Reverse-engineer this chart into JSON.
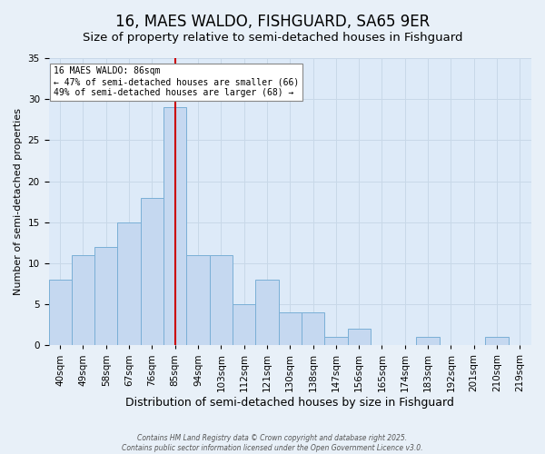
{
  "title": "16, MAES WALDO, FISHGUARD, SA65 9ER",
  "subtitle": "Size of property relative to semi-detached houses in Fishguard",
  "xlabel": "Distribution of semi-detached houses by size in Fishguard",
  "ylabel": "Number of semi-detached properties",
  "bar_labels": [
    "40sqm",
    "49sqm",
    "58sqm",
    "67sqm",
    "76sqm",
    "85sqm",
    "94sqm",
    "103sqm",
    "112sqm",
    "121sqm",
    "130sqm",
    "138sqm",
    "147sqm",
    "156sqm",
    "165sqm",
    "174sqm",
    "183sqm",
    "192sqm",
    "201sqm",
    "210sqm",
    "219sqm"
  ],
  "bar_values": [
    8,
    11,
    12,
    15,
    18,
    29,
    11,
    11,
    5,
    8,
    4,
    4,
    1,
    2,
    0,
    0,
    1,
    0,
    0,
    1,
    0
  ],
  "bar_color": "#c5d8f0",
  "bar_edge_color": "#7aafd6",
  "bin_width": 9,
  "property_label": "16 MAES WALDO: 86sqm",
  "smaller_pct": 47,
  "smaller_count": 66,
  "larger_pct": 49,
  "larger_count": 68,
  "vline_color": "#cc0000",
  "vline_x": 85,
  "annotation_box_color": "#ffffff",
  "annotation_box_edge": "#888888",
  "ylim": [
    0,
    35
  ],
  "yticks": [
    0,
    5,
    10,
    15,
    20,
    25,
    30,
    35
  ],
  "grid_color": "#c8d8e8",
  "fig_bg_color": "#e8f0f8",
  "ax_bg_color": "#ddeaf8",
  "footer_line1": "Contains HM Land Registry data © Crown copyright and database right 2025.",
  "footer_line2": "Contains public sector information licensed under the Open Government Licence v3.0.",
  "title_fontsize": 12,
  "subtitle_fontsize": 9.5,
  "xlabel_fontsize": 9,
  "ylabel_fontsize": 8,
  "tick_fontsize": 7.5,
  "annot_fontsize": 7
}
